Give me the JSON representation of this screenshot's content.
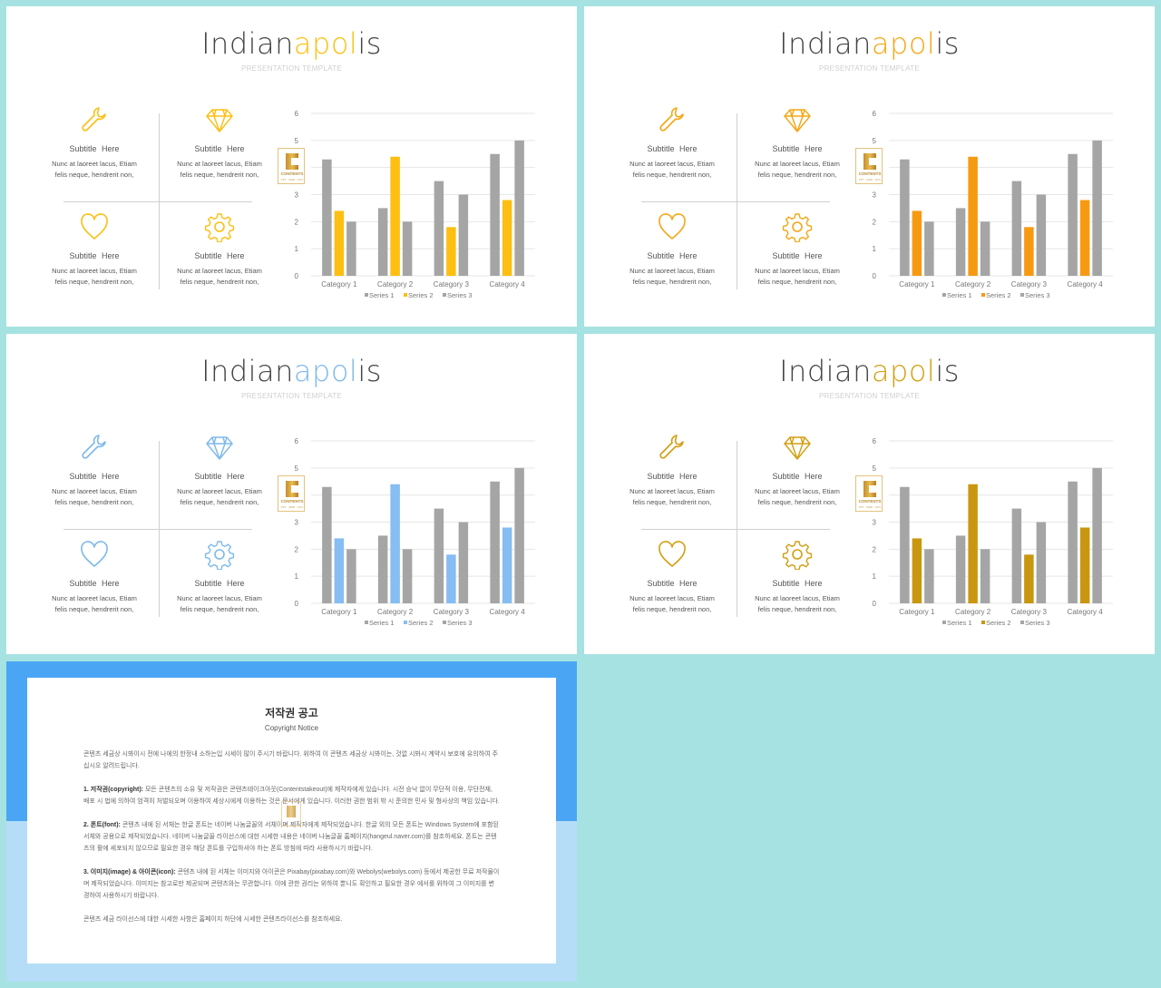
{
  "slides": [
    {
      "title_pre": "Indian",
      "title_accent": "apol",
      "title_post": "is",
      "subtitle": "PRESENTATION TEMPLATE",
      "accent": "#fcbf12",
      "series2_color": "#fcbf12",
      "items": [
        {
          "icon": "wrench-icon",
          "heading": "Subtitle  Here",
          "body1": "Nunc at laoreet lacus, Etiam",
          "body2": "felis neque, hendrerit non,"
        },
        {
          "icon": "diamond-icon",
          "heading": "Subtitle  Here",
          "body1": "Nunc at laoreet lacus, Etiam",
          "body2": "felis neque, hendrerit non,"
        },
        {
          "icon": "heart-icon",
          "heading": "Subtitle  Here",
          "body1": "Nunc at laoreet lacus, Etiam",
          "body2": "felis neque, hendrerit non,"
        },
        {
          "icon": "gear-icon",
          "heading": "Subtitle  Here",
          "body1": "Nunc at laoreet lacus, Etiam",
          "body2": "felis neque, hendrerit non,"
        }
      ],
      "badge": {
        "text": "CONTENTS",
        "sub": "PPT · WEB · DOC"
      }
    },
    {
      "title_pre": "Indian",
      "title_accent": "apol",
      "title_post": "is",
      "subtitle": "PRESENTATION TEMPLATE",
      "accent": "#f5a614",
      "series2_color": "#f79a12",
      "items": [
        {
          "icon": "wrench-icon",
          "heading": "Subtitle  Here",
          "body1": "Nunc at laoreet lacus, Etiam",
          "body2": "felis neque, hendrerit non,"
        },
        {
          "icon": "diamond-icon",
          "heading": "Subtitle  Here",
          "body1": "Nunc at laoreet lacus, Etiam",
          "body2": "felis neque, hendrerit non,"
        },
        {
          "icon": "heart-icon",
          "heading": "Subtitle  Here",
          "body1": "Nunc at laoreet lacus, Etiam",
          "body2": "felis neque, hendrerit non,"
        },
        {
          "icon": "gear-icon",
          "heading": "Subtitle  Here",
          "body1": "Nunc at laoreet lacus, Etiam",
          "body2": "felis neque, hendrerit non,"
        }
      ],
      "badge": {
        "text": "CONTENTS",
        "sub": "PPT · WEB · DOC"
      }
    },
    {
      "title_pre": "Indian",
      "title_accent": "apol",
      "title_post": "is",
      "subtitle": "PRESENTATION TEMPLATE",
      "accent": "#7db9ea",
      "series2_color": "#86bdf2",
      "items": [
        {
          "icon": "wrench-icon",
          "heading": "Subtitle  Here",
          "body1": "Nunc at laoreet lacus, Etiam",
          "body2": "felis neque, hendrerit non,"
        },
        {
          "icon": "diamond-icon",
          "heading": "Subtitle  Here",
          "body1": "Nunc at laoreet lacus, Etiam",
          "body2": "felis neque, hendrerit non,"
        },
        {
          "icon": "heart-icon",
          "heading": "Subtitle  Here",
          "body1": "Nunc at laoreet lacus, Etiam",
          "body2": "felis neque, hendrerit non,"
        },
        {
          "icon": "gear-icon",
          "heading": "Subtitle  Here",
          "body1": "Nunc at laoreet lacus, Etiam",
          "body2": "felis neque, hendrerit non,"
        }
      ],
      "badge": {
        "text": "CONTENTS",
        "sub": "PPT · WEB · DOC"
      }
    },
    {
      "title_pre": "Indian",
      "title_accent": "apol",
      "title_post": "is",
      "subtitle": "PRESENTATION TEMPLATE",
      "accent": "#d39e11",
      "series2_color": "#c9970f",
      "items": [
        {
          "icon": "wrench-icon",
          "heading": "Subtitle  Here",
          "body1": "Nunc at laoreet lacus, Etiam",
          "body2": "felis neque, hendrerit non,"
        },
        {
          "icon": "diamond-icon",
          "heading": "Subtitle  Here",
          "body1": "Nunc at laoreet lacus, Etiam",
          "body2": "felis neque, hendrerit non,"
        },
        {
          "icon": "heart-icon",
          "heading": "Subtitle  Here",
          "body1": "Nunc at laoreet lacus, Etiam",
          "body2": "felis neque, hendrerit non,"
        },
        {
          "icon": "gear-icon",
          "heading": "Subtitle  Here",
          "body1": "Nunc at laoreet lacus, Etiam",
          "body2": "felis neque, hendrerit non,"
        }
      ],
      "badge": {
        "text": "CONTENTS",
        "sub": "PPT · WEB · DOC"
      }
    }
  ],
  "chart_data": [
    {
      "type": "bar",
      "categories": [
        "Category 1",
        "Category 2",
        "Category 3",
        "Category 4"
      ],
      "ylim": [
        0,
        6
      ],
      "yticks": [
        0,
        1,
        2,
        3,
        4,
        5,
        6
      ],
      "grid": true,
      "legend": "bottom",
      "series": [
        {
          "name": "Series 1",
          "values": [
            4.3,
            2.5,
            3.5,
            4.5
          ],
          "color": "#a5a5a5"
        },
        {
          "name": "Series 2",
          "values": [
            2.4,
            4.4,
            1.8,
            2.8
          ],
          "color": "#fcbf12"
        },
        {
          "name": "Series 3",
          "values": [
            2,
            2,
            3,
            5
          ],
          "color": "#a5a5a5"
        }
      ]
    },
    {
      "type": "bar",
      "categories": [
        "Category 1",
        "Category 2",
        "Category 3",
        "Category 4"
      ],
      "ylim": [
        0,
        6
      ],
      "yticks": [
        0,
        1,
        2,
        3,
        4,
        5,
        6
      ],
      "grid": true,
      "legend": "bottom",
      "series": [
        {
          "name": "Series 1",
          "values": [
            4.3,
            2.5,
            3.5,
            4.5
          ],
          "color": "#a5a5a5"
        },
        {
          "name": "Series 2",
          "values": [
            2.4,
            4.4,
            1.8,
            2.8
          ],
          "color": "#f79a12"
        },
        {
          "name": "Series 3",
          "values": [
            2,
            2,
            3,
            5
          ],
          "color": "#a5a5a5"
        }
      ]
    },
    {
      "type": "bar",
      "categories": [
        "Category 1",
        "Category 2",
        "Category 3",
        "Category 4"
      ],
      "ylim": [
        0,
        6
      ],
      "yticks": [
        0,
        1,
        2,
        3,
        4,
        5,
        6
      ],
      "grid": true,
      "legend": "bottom",
      "series": [
        {
          "name": "Series 1",
          "values": [
            4.3,
            2.5,
            3.5,
            4.5
          ],
          "color": "#a5a5a5"
        },
        {
          "name": "Series 2",
          "values": [
            2.4,
            4.4,
            1.8,
            2.8
          ],
          "color": "#86bdf2"
        },
        {
          "name": "Series 3",
          "values": [
            2,
            2,
            3,
            5
          ],
          "color": "#a5a5a5"
        }
      ]
    },
    {
      "type": "bar",
      "categories": [
        "Category 1",
        "Category 2",
        "Category 3",
        "Category 4"
      ],
      "ylim": [
        0,
        6
      ],
      "yticks": [
        0,
        1,
        2,
        3,
        4,
        5,
        6
      ],
      "grid": true,
      "legend": "bottom",
      "series": [
        {
          "name": "Series 1",
          "values": [
            4.3,
            2.5,
            3.5,
            4.5
          ],
          "color": "#a5a5a5"
        },
        {
          "name": "Series 2",
          "values": [
            2.4,
            4.4,
            1.8,
            2.8
          ],
          "color": "#c9970f"
        },
        {
          "name": "Series 3",
          "values": [
            2,
            2,
            3,
            5
          ],
          "color": "#a5a5a5"
        }
      ]
    }
  ],
  "notice": {
    "title": "저작권 공고",
    "subtitle": "Copyright Notice",
    "p0": "콘텐츠 세금상 시봐이시 전에 나에의 한정내 소하는입 시세이 많이 주시기 바랍니다. 위하여 이 콘텐츠 세금상 시봐이는, 것없 시봐시 계약시 보호에 유의하여 주십시오 알려드립니다.",
    "p1_label": "1. 저작권(copyright):",
    "p1": " 모든 콘텐츠의 소유 및 저작권은 콘텐츠테이크아웃(Contentstakeout)에 제작자에게 있습니다. 시전 승낙 없이 무단적 이용, 무단전재, 배포 시 법에 의하여 엄격히 처벌되오며 이용하여 세상시에게 이용하는 것은 문서에게 있습니다. 이러한 권한 범위 밖 시 준의한 민사 및 형사상의 책임 있습니다.",
    "p2_label": "2. 폰트(font):",
    "p2": " 콘텐츠 내에 된 서체는 한글 폰트는 네이버 나눔글꼴의 서체이며 제작자에게 제작되었습니다. 한글 외의 모든 폰트는 Windows System에 포함된 서체와 공용으로 제작되었습니다. 네이버 나눔글꼴 라이선스에 대한 시세한 내용은 네이버 나눔글꼴 홈페이지(hangeul.naver.com)를 참조하세요. 폰트는 콘텐츠의 활에 세포되지 않으므로 필요한 경우 해당 폰트를 구입하셔야 하는 폰트 방침에 따라 사용하시기 바랍니다.",
    "p3_label": "3. 이미지(image) & 아이콘(icon):",
    "p3": " 콘텐츠 내에 된 서체는 이미지와 아이콘은 Pixabay(pixabay.com)와 Webolys(webolys.com) 등에서 제공한 무료 저작물이며 제작되었습니다. 이미지는 참고로만 제공되며 콘텐츠와는 무관합니다. 이에 관한 권리는 위하여 뿐니도 확인하고 필요한 경우 에서를 위하여 그 이미지를 변경하여 사용하시기 바랍니다.",
    "p4": "콘텐츠 세금 라이선스에 대한 시세한 사항은 홈페이지 하단에 시세한 콘텐츠라이선스를 참조하세요."
  }
}
